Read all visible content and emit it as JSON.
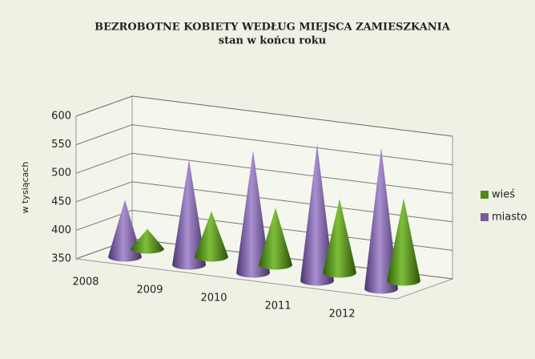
{
  "chart_data": {
    "type": "cone3d",
    "title": "BEZROBOTNE KOBIETY WEDŁUG MIEJSCA ZAMIESZKANIA",
    "subtitle": "stan w końcu roku",
    "y_label": "w tysiącach",
    "categories": [
      "2008",
      "2009",
      "2010",
      "2011",
      "2012"
    ],
    "series": [
      {
        "name": "wieś",
        "color": "#4e8a1a",
        "values": [
          385,
          430,
          450,
          480,
          495
        ]
      },
      {
        "name": "miasto",
        "color": "#7a5a9e",
        "values": [
          450,
          535,
          565,
          590,
          598
        ]
      }
    ],
    "ylim": [
      350,
      600
    ],
    "yticks": [
      350,
      400,
      450,
      500,
      550,
      600
    ],
    "grid": true,
    "legend": "right"
  }
}
